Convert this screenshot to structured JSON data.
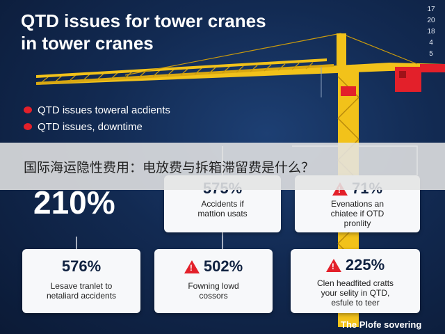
{
  "title": {
    "line1": "QTD issues for tower cranes",
    "line2": "in tower cranes"
  },
  "corner_numbers": [
    "17",
    "20",
    "18",
    "4",
    "5"
  ],
  "bullets": [
    "QTD issues toweral acdients",
    "QTD issues, downtime"
  ],
  "banner_text": "国际海运隐性费用：电放费与拆箱滞留费是什么？",
  "big_stat": "210%",
  "cards": [
    {
      "stat": "575%",
      "desc_lines": [
        "Accidents if",
        "mattion usats"
      ],
      "warning": false
    },
    {
      "stat": "71%",
      "desc_lines": [
        "Evenations an",
        "chiatee if OTD",
        "pronlity"
      ],
      "warning": true
    },
    {
      "stat": "576%",
      "desc_lines": [
        "Lesave tranlet to",
        "netaliard accidents"
      ],
      "warning": false
    },
    {
      "stat": "502%",
      "desc_lines": [
        "Fowning lowd",
        "cossors"
      ],
      "warning": true
    },
    {
      "stat": "225%",
      "desc_lines": [
        "Clen headfited cratts",
        "your selity in QTD,",
        "esfule to teer"
      ],
      "warning": true
    }
  ],
  "footer": "The Plofe sovering",
  "colors": {
    "background": "#122a52",
    "crane_yellow": "#f2c21a",
    "crane_red": "#e3202a",
    "alert_red": "#e3202a",
    "card_bg": "#f7f8fa"
  },
  "icons": [
    "warning-triangle-icon",
    "bullet-dot-icon",
    "tower-crane-illustration"
  ]
}
